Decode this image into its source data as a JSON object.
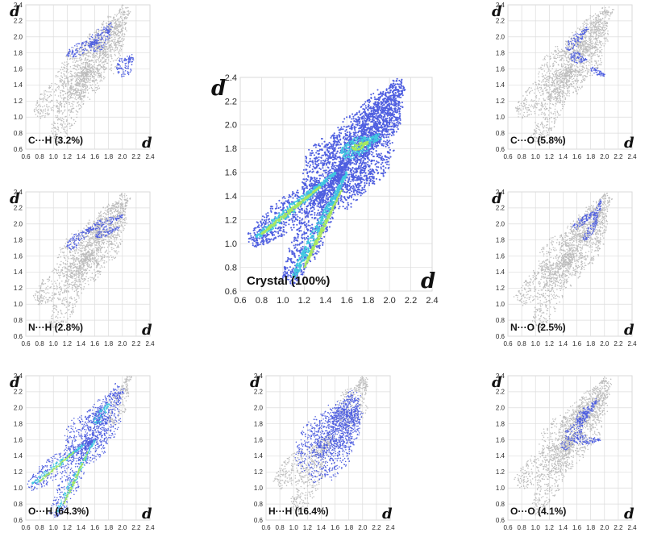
{
  "chart_data": [
    {
      "id": "ch",
      "type": "scatter",
      "title": "C···H (3.2%)",
      "xlabel": "d",
      "ylabel": "d",
      "xlim": [
        0.6,
        2.4
      ],
      "ylim": [
        0.6,
        2.4
      ],
      "x_ticks": [
        "0.6",
        "0.8",
        "1.0",
        "1.2",
        "1.4",
        "1.6",
        "1.8",
        "2.0",
        "2.2",
        "2.4"
      ],
      "y_ticks": [
        "2.4",
        "2.2",
        "2.0",
        "1.8",
        "1.6",
        "1.4",
        "1.2",
        "1.0",
        "0.8",
        "0.6"
      ],
      "grid": true,
      "series": [
        {
          "color": "#bdbdbd",
          "regions": [
            [
              0.75,
              1.05,
              1.5,
              1.6,
              0.17
            ],
            [
              1.0,
              0.7,
              1.55,
              1.65,
              0.16
            ],
            [
              1.2,
              1.3,
              1.7,
              1.95,
              0.34
            ],
            [
              1.5,
              1.5,
              1.95,
              2.2,
              0.3
            ],
            [
              1.7,
              1.8,
              2.05,
              2.35,
              0.22
            ]
          ]
        },
        {
          "color": "#5060e0",
          "regions": [
            [
              1.2,
              1.78,
              1.65,
              1.95,
              0.08
            ],
            [
              1.55,
              1.85,
              1.85,
              2.15,
              0.12
            ],
            [
              1.95,
              1.55,
              2.15,
              1.75,
              0.12
            ]
          ]
        }
      ]
    },
    {
      "id": "co",
      "type": "scatter",
      "title": "C···O (5.8%)",
      "xlabel": "d",
      "ylabel": "d",
      "xlim": [
        0.6,
        2.4
      ],
      "ylim": [
        0.6,
        2.4
      ],
      "x_ticks": [
        "0.6",
        "0.8",
        "1.0",
        "1.2",
        "1.4",
        "1.6",
        "1.8",
        "2.0",
        "2.2",
        "2.4"
      ],
      "y_ticks": [
        "2.4",
        "2.2",
        "2.0",
        "1.8",
        "1.6",
        "1.4",
        "1.2",
        "1.0",
        "0.8",
        "0.6"
      ],
      "grid": true,
      "series": [
        {
          "color": "#bdbdbd",
          "regions": [
            [
              0.75,
              1.05,
              1.5,
              1.6,
              0.17
            ],
            [
              1.0,
              0.7,
              1.55,
              1.65,
              0.16
            ],
            [
              1.2,
              1.3,
              1.7,
              1.95,
              0.34
            ],
            [
              1.5,
              1.5,
              1.95,
              2.2,
              0.3
            ],
            [
              1.7,
              1.8,
              2.05,
              2.35,
              0.22
            ]
          ]
        },
        {
          "color": "#5060e0",
          "regions": [
            [
              1.45,
              1.85,
              1.75,
              2.1,
              0.07
            ],
            [
              1.5,
              1.75,
              1.75,
              1.72,
              0.07
            ],
            [
              1.8,
              1.6,
              2.0,
              1.52,
              0.05
            ]
          ]
        }
      ]
    },
    {
      "id": "crystal",
      "type": "scatter",
      "title": "Crystal (100%)",
      "xlabel": "d",
      "ylabel": "d",
      "xlim": [
        0.6,
        2.4
      ],
      "ylim": [
        0.6,
        2.4
      ],
      "x_ticks": [
        "0.6",
        "0.8",
        "1.0",
        "1.2",
        "1.4",
        "1.6",
        "1.8",
        "2.0",
        "2.2",
        "2.4"
      ],
      "y_ticks": [
        "2.4",
        "2.2",
        "2.0",
        "1.8",
        "1.6",
        "1.4",
        "1.2",
        "1.0",
        "0.8",
        "0.6"
      ],
      "grid": true,
      "series": [
        {
          "color": "#4f5fe0",
          "regions": [
            [
              0.7,
              1.02,
              1.55,
              1.6,
              0.14
            ],
            [
              1.05,
              0.68,
              1.6,
              1.7,
              0.14
            ],
            [
              1.3,
              1.4,
              1.8,
              1.9,
              0.32
            ],
            [
              1.55,
              1.5,
              2.0,
              2.2,
              0.3
            ],
            [
              1.8,
              1.9,
              2.1,
              2.35,
              0.2
            ]
          ]
        },
        {
          "color": "#40c8e0",
          "regions": [
            [
              0.75,
              1.05,
              1.5,
              1.6,
              0.04
            ],
            [
              1.1,
              0.72,
              1.6,
              1.6,
              0.04
            ],
            [
              1.55,
              1.75,
              1.9,
              1.9,
              0.08
            ]
          ]
        },
        {
          "color": "#a8e860",
          "regions": [
            [
              0.8,
              1.08,
              1.35,
              1.48,
              0.015
            ],
            [
              1.2,
              0.8,
              1.55,
              1.45,
              0.015
            ],
            [
              1.65,
              1.8,
              1.8,
              1.85,
              0.03
            ]
          ]
        }
      ]
    },
    {
      "id": "nh",
      "type": "scatter",
      "title": "N···H (2.8%)",
      "xlabel": "d",
      "ylabel": "d",
      "xlim": [
        0.6,
        2.4
      ],
      "ylim": [
        0.6,
        2.4
      ],
      "x_ticks": [
        "0.6",
        "0.8",
        "1.0",
        "1.2",
        "1.4",
        "1.6",
        "1.8",
        "2.0",
        "2.2",
        "2.4"
      ],
      "y_ticks": [
        "2.4",
        "2.2",
        "2.0",
        "1.8",
        "1.6",
        "1.4",
        "1.2",
        "1.0",
        "0.8",
        "0.6"
      ],
      "grid": true,
      "series": [
        {
          "color": "#bdbdbd",
          "regions": [
            [
              0.75,
              1.05,
              1.5,
              1.6,
              0.17
            ],
            [
              1.0,
              0.7,
              1.55,
              1.65,
              0.16
            ],
            [
              1.2,
              1.3,
              1.7,
              1.95,
              0.34
            ],
            [
              1.5,
              1.5,
              1.95,
              2.2,
              0.3
            ],
            [
              1.7,
              1.8,
              2.05,
              2.35,
              0.22
            ]
          ]
        },
        {
          "color": "#5060e0",
          "regions": [
            [
              1.2,
              1.7,
              1.55,
              1.95,
              0.08
            ],
            [
              1.55,
              1.95,
              2.0,
              2.1,
              0.06
            ],
            [
              1.6,
              1.85,
              1.95,
              1.95,
              0.05
            ]
          ]
        }
      ]
    },
    {
      "id": "no",
      "type": "scatter",
      "title": "N···O (2.5%)",
      "xlabel": "d",
      "ylabel": "d",
      "xlim": [
        0.6,
        2.4
      ],
      "ylim": [
        0.6,
        2.4
      ],
      "x_ticks": [
        "0.6",
        "0.8",
        "1.0",
        "1.2",
        "1.4",
        "1.6",
        "1.8",
        "2.0",
        "2.2",
        "2.4"
      ],
      "y_ticks": [
        "2.4",
        "2.2",
        "2.0",
        "1.8",
        "1.6",
        "1.4",
        "1.2",
        "1.0",
        "0.8",
        "0.6"
      ],
      "grid": true,
      "series": [
        {
          "color": "#bdbdbd",
          "regions": [
            [
              0.75,
              1.05,
              1.5,
              1.6,
              0.17
            ],
            [
              1.0,
              0.7,
              1.55,
              1.65,
              0.16
            ],
            [
              1.2,
              1.3,
              1.7,
              1.95,
              0.34
            ],
            [
              1.5,
              1.5,
              1.95,
              2.2,
              0.3
            ],
            [
              1.7,
              1.8,
              2.05,
              2.35,
              0.22
            ]
          ]
        },
        {
          "color": "#5060e0",
          "regions": [
            [
              1.55,
              1.95,
              1.85,
              2.15,
              0.06
            ],
            [
              1.7,
              1.8,
              1.9,
              2.05,
              0.05
            ],
            [
              1.85,
              2.05,
              1.95,
              2.3,
              0.04
            ]
          ]
        }
      ]
    },
    {
      "id": "oh",
      "type": "scatter",
      "title": "O···H (64.3%)",
      "xlabel": "d",
      "ylabel": "d",
      "xlim": [
        0.6,
        2.4
      ],
      "ylim": [
        0.6,
        2.4
      ],
      "x_ticks": [
        "0.6",
        "0.8",
        "1.0",
        "1.2",
        "1.4",
        "1.6",
        "1.8",
        "2.0",
        "2.2",
        "2.4"
      ],
      "y_ticks": [
        "2.4",
        "2.2",
        "2.0",
        "1.8",
        "1.6",
        "1.4",
        "1.2",
        "1.0",
        "0.8",
        "0.6"
      ],
      "grid": true,
      "series": [
        {
          "color": "#bdbdbd",
          "regions": [
            [
              1.85,
              1.8,
              2.1,
              2.4,
              0.12
            ]
          ]
        },
        {
          "color": "#4f5fe0",
          "regions": [
            [
              0.65,
              1.02,
              1.55,
              1.6,
              0.14
            ],
            [
              1.0,
              0.65,
              1.6,
              1.7,
              0.14
            ],
            [
              1.3,
              1.4,
              1.75,
              1.95,
              0.32
            ],
            [
              1.55,
              1.55,
              1.95,
              2.25,
              0.26
            ]
          ]
        },
        {
          "color": "#40c8e0",
          "regions": [
            [
              0.7,
              1.05,
              1.45,
              1.55,
              0.04
            ],
            [
              1.05,
              0.7,
              1.6,
              1.6,
              0.04
            ],
            [
              1.6,
              1.8,
              1.8,
              2.05,
              0.06
            ]
          ]
        },
        {
          "color": "#a8e860",
          "regions": [
            [
              0.8,
              1.08,
              1.3,
              1.45,
              0.015
            ],
            [
              1.15,
              0.8,
              1.5,
              1.45,
              0.015
            ]
          ]
        }
      ]
    },
    {
      "id": "hh",
      "type": "scatter",
      "title": "H···H (16.4%)",
      "xlabel": "d",
      "ylabel": "d",
      "xlim": [
        0.6,
        2.4
      ],
      "ylim": [
        0.6,
        2.4
      ],
      "x_ticks": [
        "0.6",
        "0.8",
        "1.0",
        "1.2",
        "1.4",
        "1.6",
        "1.8",
        "2.0",
        "2.2",
        "2.4"
      ],
      "y_ticks": [
        "2.4",
        "2.2",
        "2.0",
        "1.8",
        "1.6",
        "1.4",
        "1.2",
        "1.0",
        "0.8",
        "0.6"
      ],
      "grid": true,
      "series": [
        {
          "color": "#bdbdbd",
          "regions": [
            [
              0.75,
              1.05,
              1.5,
              1.6,
              0.17
            ],
            [
              1.0,
              0.7,
              1.55,
              1.65,
              0.16
            ],
            [
              1.7,
              1.8,
              2.05,
              2.35,
              0.22
            ]
          ]
        },
        {
          "color": "#5060e0",
          "regions": [
            [
              1.2,
              1.2,
              1.8,
              1.95,
              0.4
            ],
            [
              1.4,
              1.4,
              1.9,
              2.15,
              0.32
            ],
            [
              1.55,
              1.6,
              1.95,
              1.95,
              0.25
            ]
          ]
        }
      ]
    },
    {
      "id": "oo",
      "type": "scatter",
      "title": "O···O (4.1%)",
      "xlabel": "d",
      "ylabel": "d",
      "xlim": [
        0.6,
        2.4
      ],
      "ylim": [
        0.6,
        2.4
      ],
      "x_ticks": [
        "0.6",
        "0.8",
        "1.0",
        "1.2",
        "1.4",
        "1.6",
        "1.8",
        "2.0",
        "2.2",
        "2.4"
      ],
      "y_ticks": [
        "2.4",
        "2.2",
        "2.0",
        "1.8",
        "1.6",
        "1.4",
        "1.2",
        "1.0",
        "0.8",
        "0.6"
      ],
      "grid": true,
      "series": [
        {
          "color": "#bdbdbd",
          "regions": [
            [
              0.75,
              1.05,
              1.5,
              1.6,
              0.17
            ],
            [
              1.0,
              0.7,
              1.55,
              1.65,
              0.16
            ],
            [
              1.2,
              1.3,
              1.7,
              1.95,
              0.34
            ],
            [
              1.5,
              1.5,
              1.95,
              2.2,
              0.3
            ],
            [
              1.7,
              1.8,
              2.05,
              2.35,
              0.22
            ]
          ]
        },
        {
          "color": "#5060e0",
          "regions": [
            [
              1.4,
              1.5,
              1.75,
              1.95,
              0.1
            ],
            [
              1.6,
              1.8,
              1.9,
              2.1,
              0.08
            ],
            [
              1.55,
              1.6,
              1.95,
              1.6,
              0.06
            ]
          ]
        }
      ]
    }
  ]
}
